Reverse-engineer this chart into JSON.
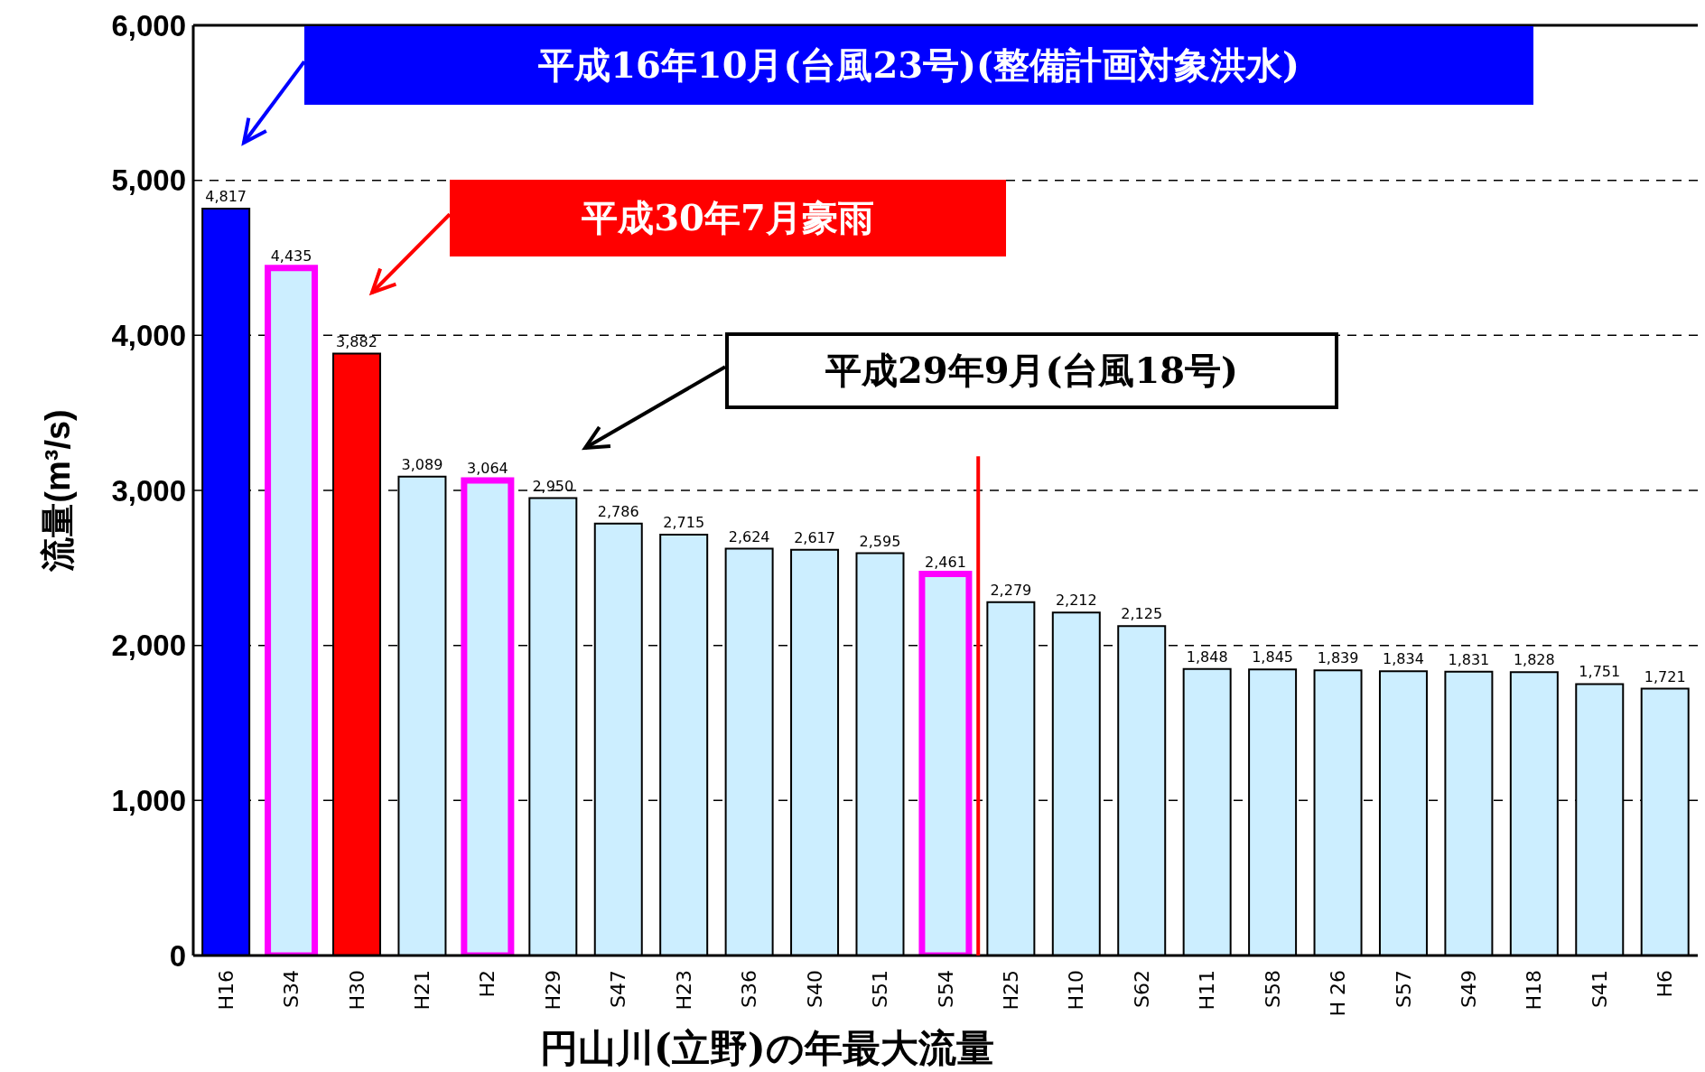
{
  "chart_data": {
    "type": "bar",
    "xlabel": "円山川(立野)の年最大流量",
    "ylabel": "流量(m³/s)",
    "categories": [
      "H16",
      "S34",
      "H30",
      "H21",
      "H2",
      "H29",
      "S47",
      "H23",
      "S36",
      "S40",
      "S51",
      "S54",
      "H25",
      "H10",
      "S62",
      "H11",
      "S58",
      "H 26",
      "S57",
      "S49",
      "H18",
      "S41",
      "H6"
    ],
    "values": [
      4817,
      4435,
      3882,
      3089,
      3064,
      2950,
      2786,
      2715,
      2624,
      2617,
      2595,
      2461,
      2279,
      2212,
      2125,
      1848,
      1845,
      1839,
      1834,
      1831,
      1828,
      1751,
      1721
    ],
    "colors": [
      "#0000ff",
      "#cceeff",
      "#ff0000",
      "#cceeff",
      "#cceeff",
      "#cceeff",
      "#cceeff",
      "#cceeff",
      "#cceeff",
      "#cceeff",
      "#cceeff",
      "#cceeff",
      "#cceeff",
      "#cceeff",
      "#cceeff",
      "#cceeff",
      "#cceeff",
      "#cceeff",
      "#cceeff",
      "#cceeff",
      "#cceeff",
      "#cceeff",
      "#cceeff"
    ],
    "ylim": [
      0,
      6000
    ],
    "yticks": [
      0,
      {
        "value": 1000,
        "label": "1,000"
      },
      {
        "value": 2000,
        "label": "2,000"
      },
      {
        "value": 3000,
        "label": "3,000"
      },
      {
        "value": 4000,
        "label": "4,000"
      },
      {
        "value": 5000,
        "label": "5,000"
      },
      {
        "value": 6000,
        "label": "6,000"
      }
    ],
    "value_labels": [
      "4,817",
      "4,435",
      "3,882",
      "3,089",
      "3,064",
      "2,950",
      "2,786",
      "2,715",
      "2,624",
      "2,617",
      "2,595",
      "2,461",
      "2,279",
      "2,212",
      "2,125",
      "1,848",
      "1,845",
      "1,839",
      "1,834",
      "1,831",
      "1,828",
      "1,751",
      "1,721"
    ],
    "grid": "y",
    "ref_lines": [
      {
        "axis": "x",
        "value": "S54",
        "color": "#ff0000"
      }
    ],
    "annotations": [
      "平成16年10月(台風23号)(整備計画対象洪水)",
      "平成30年7月豪雨",
      "平成29年9月(台風18号)"
    ]
  }
}
